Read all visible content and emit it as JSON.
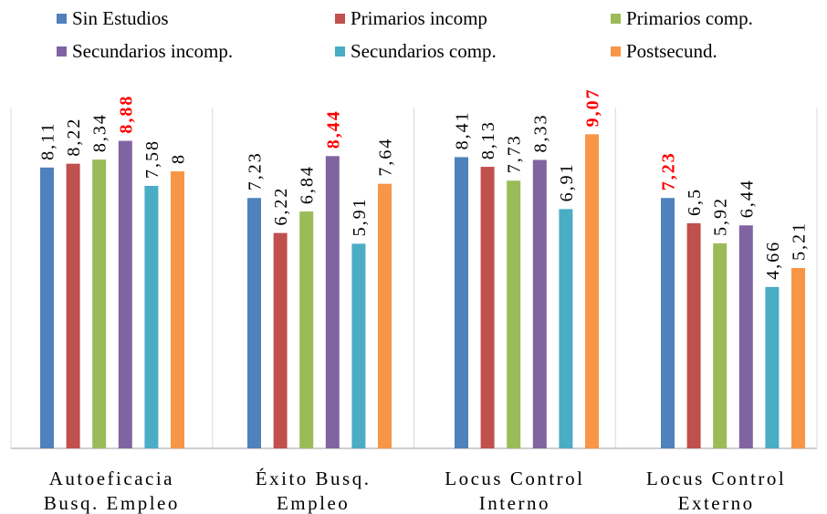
{
  "colors": {
    "text": "#000000",
    "highlight": "#ff0000",
    "separator": "#d9d9d9",
    "axis": "#bfbfbf"
  },
  "chart_data": {
    "type": "bar",
    "title": "",
    "xlabel": "",
    "ylabel": "",
    "ylim": [
      0,
      10
    ],
    "grid": false,
    "legend_position": "top",
    "categories": [
      [
        "Autoeficacia",
        "Busq. Empleo"
      ],
      [
        "Éxito Busq.",
        "Empleo"
      ],
      [
        "Locus Control",
        "Interno"
      ],
      [
        "Locus Control",
        "Externo"
      ]
    ],
    "series": [
      {
        "name": "Sin Estudios",
        "color": "#4f81bd",
        "values": [
          8.11,
          7.23,
          8.41,
          7.23
        ],
        "labels": [
          "8,11",
          "7,23",
          "8,41",
          "7,23"
        ]
      },
      {
        "name": "Primarios incomp",
        "color": "#c0504d",
        "values": [
          8.22,
          6.22,
          8.13,
          6.5
        ],
        "labels": [
          "8,22",
          "6,22",
          "8,13",
          "6,5"
        ]
      },
      {
        "name": "Primarios comp.",
        "color": "#9bbb59",
        "values": [
          8.34,
          6.84,
          7.73,
          5.92
        ],
        "labels": [
          "8,34",
          "6,84",
          "7,73",
          "5,92"
        ]
      },
      {
        "name": "Secundarios incomp.",
        "color": "#8064a2",
        "values": [
          8.88,
          8.44,
          8.33,
          6.44
        ],
        "labels": [
          "8,88",
          "8,44",
          "8,33",
          "6,44"
        ]
      },
      {
        "name": "Secundarios comp.",
        "color": "#4bacc6",
        "values": [
          7.58,
          5.91,
          6.91,
          4.66
        ],
        "labels": [
          "7,58",
          "5,91",
          "6,91",
          "4,66"
        ]
      },
      {
        "name": "Postsecund.",
        "color": "#f79646",
        "values": [
          8,
          7.64,
          9.07,
          5.21
        ],
        "labels": [
          "8",
          "7,64",
          "9,07",
          "5,21"
        ]
      }
    ],
    "highlighted": [
      {
        "category_index": 0,
        "series_index": 3
      },
      {
        "category_index": 1,
        "series_index": 3
      },
      {
        "category_index": 2,
        "series_index": 5
      },
      {
        "category_index": 3,
        "series_index": 0
      }
    ]
  }
}
